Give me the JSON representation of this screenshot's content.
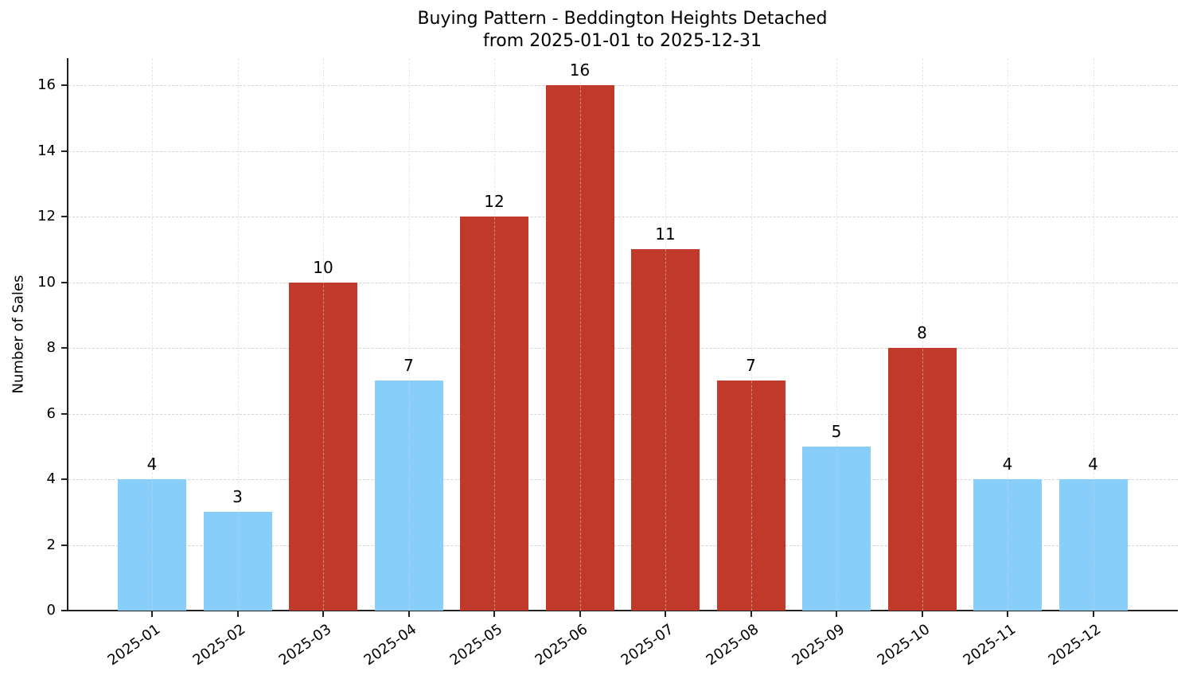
{
  "chart_data": {
    "type": "bar",
    "title": "Buying Pattern - Beddington Heights Detached",
    "subtitle": "from 2025-01-01 to 2025-12-31",
    "xlabel": "",
    "ylabel": "Number of Sales",
    "categories": [
      "2025-01",
      "2025-02",
      "2025-03",
      "2025-04",
      "2025-05",
      "2025-06",
      "2025-07",
      "2025-08",
      "2025-09",
      "2025-10",
      "2025-11",
      "2025-12"
    ],
    "values": [
      4,
      3,
      10,
      7,
      12,
      16,
      11,
      7,
      5,
      8,
      4,
      4
    ],
    "bar_colors": [
      "#87CEFA",
      "#87CEFA",
      "#C0392B",
      "#87CEFA",
      "#C0392B",
      "#C0392B",
      "#C0392B",
      "#C0392B",
      "#87CEFA",
      "#C0392B",
      "#87CEFA",
      "#87CEFA"
    ],
    "ylim": [
      0,
      16.8
    ],
    "yticks": [
      0,
      2,
      4,
      6,
      8,
      10,
      12,
      14,
      16
    ],
    "grid": true,
    "legend": null,
    "data_labels": true
  },
  "colors": {
    "high": "#C0392B",
    "low": "#87CEFA",
    "axis": "#222222",
    "grid": "#d4d4d4"
  }
}
